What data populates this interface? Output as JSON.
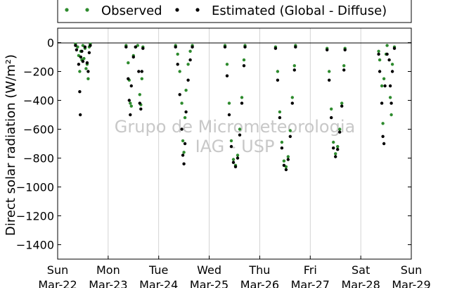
{
  "chart_data": {
    "type": "scatter",
    "title": "",
    "ylabel": "Direct solar radiation (W/m²)",
    "ylim": [
      -1500,
      100
    ],
    "yticks": [
      0,
      -200,
      -400,
      -600,
      -800,
      -1000,
      -1200,
      -1400
    ],
    "xlim": [
      "2015-03-22",
      "2015-03-29"
    ],
    "grid": "vertical-day-lines",
    "watermark": [
      "Grupo de Micrometeorologia",
      "IAG - USP"
    ],
    "legend_position": "top-outside",
    "xticks": [
      {
        "day": "Sun",
        "date": "Mar-22"
      },
      {
        "day": "Mon",
        "date": "Mar-23"
      },
      {
        "day": "Tue",
        "date": "Mar-24"
      },
      {
        "day": "Wed",
        "date": "Mar-25"
      },
      {
        "day": "Thu",
        "date": "Mar-26"
      },
      {
        "day": "Fri",
        "date": "Mar-27"
      },
      {
        "day": "Sat",
        "date": "Mar-28"
      },
      {
        "day": "Sun",
        "date": "Mar-29"
      }
    ],
    "series": [
      {
        "name": "Observed",
        "color": "#2e8b2e",
        "points": [
          [
            "2015-03-22T08:30",
            -10
          ],
          [
            "2015-03-22T09:30",
            -30
          ],
          [
            "2015-03-22T10:00",
            -90
          ],
          [
            "2015-03-22T10:30",
            -200
          ],
          [
            "2015-03-22T11:00",
            -60
          ],
          [
            "2015-03-22T11:30",
            -120
          ],
          [
            "2015-03-22T12:00",
            -20
          ],
          [
            "2015-03-22T12:30",
            -110
          ],
          [
            "2015-03-22T13:00",
            -40
          ],
          [
            "2015-03-22T13:30",
            -180
          ],
          [
            "2015-03-22T14:00",
            -150
          ],
          [
            "2015-03-22T14:30",
            -250
          ],
          [
            "2015-03-22T15:00",
            -30
          ],
          [
            "2015-03-22T15:30",
            -10
          ],
          [
            "2015-03-23T08:30",
            -20
          ],
          [
            "2015-03-23T09:30",
            -140
          ],
          [
            "2015-03-23T10:00",
            -260
          ],
          [
            "2015-03-23T10:30",
            -420
          ],
          [
            "2015-03-23T11:00",
            -440
          ],
          [
            "2015-03-23T12:00",
            -90
          ],
          [
            "2015-03-23T13:00",
            -30
          ],
          [
            "2015-03-23T14:00",
            -20
          ],
          [
            "2015-03-23T15:00",
            -360
          ],
          [
            "2015-03-23T15:30",
            -430
          ],
          [
            "2015-03-23T16:00",
            -250
          ],
          [
            "2015-03-23T16:30",
            -30
          ],
          [
            "2015-03-24T08:00",
            -20
          ],
          [
            "2015-03-24T09:00",
            -80
          ],
          [
            "2015-03-24T10:00",
            -200
          ],
          [
            "2015-03-24T11:00",
            -420
          ],
          [
            "2015-03-24T11:30",
            -680
          ],
          [
            "2015-03-24T12:00",
            -760
          ],
          [
            "2015-03-24T12:30",
            -520
          ],
          [
            "2015-03-24T13:00",
            -330
          ],
          [
            "2015-03-24T14:00",
            -150
          ],
          [
            "2015-03-24T15:00",
            -60
          ],
          [
            "2015-03-24T16:00",
            -20
          ],
          [
            "2015-03-25T07:30",
            -20
          ],
          [
            "2015-03-25T08:30",
            -150
          ],
          [
            "2015-03-25T09:30",
            -420
          ],
          [
            "2015-03-25T10:30",
            -680
          ],
          [
            "2015-03-25T11:30",
            -810
          ],
          [
            "2015-03-25T12:30",
            -850
          ],
          [
            "2015-03-25T13:30",
            -780
          ],
          [
            "2015-03-25T14:30",
            -600
          ],
          [
            "2015-03-25T15:30",
            -380
          ],
          [
            "2015-03-25T16:30",
            -120
          ],
          [
            "2015-03-25T17:00",
            -20
          ],
          [
            "2015-03-26T07:30",
            -30
          ],
          [
            "2015-03-26T08:30",
            -200
          ],
          [
            "2015-03-26T09:30",
            -480
          ],
          [
            "2015-03-26T10:30",
            -690
          ],
          [
            "2015-03-26T11:30",
            -820
          ],
          [
            "2015-03-26T12:30",
            -860
          ],
          [
            "2015-03-26T13:30",
            -790
          ],
          [
            "2015-03-26T14:30",
            -610
          ],
          [
            "2015-03-26T15:30",
            -380
          ],
          [
            "2015-03-26T16:30",
            -160
          ],
          [
            "2015-03-26T17:00",
            -20
          ],
          [
            "2015-03-27T08:00",
            -40
          ],
          [
            "2015-03-27T09:00",
            -200
          ],
          [
            "2015-03-27T10:00",
            -460
          ],
          [
            "2015-03-27T11:00",
            -690
          ],
          [
            "2015-03-27T12:00",
            -770
          ],
          [
            "2015-03-27T13:00",
            -720
          ],
          [
            "2015-03-27T14:00",
            -600
          ],
          [
            "2015-03-27T15:00",
            -420
          ],
          [
            "2015-03-27T16:00",
            -160
          ],
          [
            "2015-03-27T16:30",
            -40
          ],
          [
            "2015-03-28T08:30",
            -60
          ],
          [
            "2015-03-28T09:00",
            -120
          ],
          [
            "2015-03-28T10:00",
            -300
          ],
          [
            "2015-03-28T10:30",
            -560
          ],
          [
            "2015-03-28T11:00",
            -250
          ],
          [
            "2015-03-28T12:00",
            -80
          ],
          [
            "2015-03-28T12:30",
            -20
          ],
          [
            "2015-03-28T14:00",
            -380
          ],
          [
            "2015-03-28T14:30",
            -500
          ],
          [
            "2015-03-28T15:00",
            -150
          ],
          [
            "2015-03-28T16:00",
            -30
          ]
        ]
      },
      {
        "name": "Estimated (Global - Diffuse)",
        "color": "#000000",
        "points": [
          [
            "2015-03-22T08:30",
            -20
          ],
          [
            "2015-03-22T09:00",
            -50
          ],
          [
            "2015-03-22T10:00",
            -150
          ],
          [
            "2015-03-22T10:30",
            -340
          ],
          [
            "2015-03-22T10:45",
            -500
          ],
          [
            "2015-03-22T11:00",
            -100
          ],
          [
            "2015-03-22T11:30",
            -60
          ],
          [
            "2015-03-22T12:00",
            -130
          ],
          [
            "2015-03-22T13:00",
            -30
          ],
          [
            "2015-03-22T14:00",
            -140
          ],
          [
            "2015-03-22T14:30",
            -200
          ],
          [
            "2015-03-22T15:00",
            -70
          ],
          [
            "2015-03-22T15:30",
            -20
          ],
          [
            "2015-03-23T08:30",
            -30
          ],
          [
            "2015-03-23T09:30",
            -250
          ],
          [
            "2015-03-23T10:00",
            -400
          ],
          [
            "2015-03-23T10:30",
            -500
          ],
          [
            "2015-03-23T11:00",
            -300
          ],
          [
            "2015-03-23T12:00",
            -100
          ],
          [
            "2015-03-23T13:00",
            -30
          ],
          [
            "2015-03-23T14:30",
            -200
          ],
          [
            "2015-03-23T15:00",
            -420
          ],
          [
            "2015-03-23T15:30",
            -460
          ],
          [
            "2015-03-23T16:00",
            -200
          ],
          [
            "2015-03-23T16:30",
            -40
          ],
          [
            "2015-03-24T08:00",
            -30
          ],
          [
            "2015-03-24T09:00",
            -150
          ],
          [
            "2015-03-24T10:00",
            -360
          ],
          [
            "2015-03-24T11:00",
            -600
          ],
          [
            "2015-03-24T11:30",
            -780
          ],
          [
            "2015-03-24T12:00",
            -840
          ],
          [
            "2015-03-24T12:30",
            -700
          ],
          [
            "2015-03-24T13:00",
            -480
          ],
          [
            "2015-03-24T14:00",
            -260
          ],
          [
            "2015-03-24T15:00",
            -120
          ],
          [
            "2015-03-24T16:00",
            -30
          ],
          [
            "2015-03-25T07:30",
            -30
          ],
          [
            "2015-03-25T08:30",
            -230
          ],
          [
            "2015-03-25T09:30",
            -500
          ],
          [
            "2015-03-25T10:30",
            -720
          ],
          [
            "2015-03-25T11:30",
            -830
          ],
          [
            "2015-03-25T12:30",
            -860
          ],
          [
            "2015-03-25T13:30",
            -800
          ],
          [
            "2015-03-25T14:30",
            -640
          ],
          [
            "2015-03-25T15:30",
            -420
          ],
          [
            "2015-03-25T16:30",
            -160
          ],
          [
            "2015-03-25T17:00",
            -30
          ],
          [
            "2015-03-26T07:30",
            -40
          ],
          [
            "2015-03-26T08:30",
            -260
          ],
          [
            "2015-03-26T09:30",
            -520
          ],
          [
            "2015-03-26T10:30",
            -730
          ],
          [
            "2015-03-26T11:30",
            -850
          ],
          [
            "2015-03-26T12:30",
            -880
          ],
          [
            "2015-03-26T13:30",
            -810
          ],
          [
            "2015-03-26T14:30",
            -650
          ],
          [
            "2015-03-26T15:30",
            -420
          ],
          [
            "2015-03-26T16:30",
            -190
          ],
          [
            "2015-03-26T17:00",
            -30
          ],
          [
            "2015-03-27T08:00",
            -50
          ],
          [
            "2015-03-27T09:00",
            -260
          ],
          [
            "2015-03-27T10:00",
            -520
          ],
          [
            "2015-03-27T11:00",
            -730
          ],
          [
            "2015-03-27T12:00",
            -790
          ],
          [
            "2015-03-27T13:00",
            -740
          ],
          [
            "2015-03-27T14:00",
            -620
          ],
          [
            "2015-03-27T15:00",
            -440
          ],
          [
            "2015-03-27T16:00",
            -190
          ],
          [
            "2015-03-27T16:30",
            -50
          ],
          [
            "2015-03-28T08:30",
            -80
          ],
          [
            "2015-03-28T09:00",
            -200
          ],
          [
            "2015-03-28T10:00",
            -420
          ],
          [
            "2015-03-28T10:30",
            -650
          ],
          [
            "2015-03-28T11:00",
            -700
          ],
          [
            "2015-03-28T11:30",
            -300
          ],
          [
            "2015-03-28T12:30",
            -80
          ],
          [
            "2015-03-28T13:30",
            -120
          ],
          [
            "2015-03-28T14:00",
            -300
          ],
          [
            "2015-03-28T14:30",
            -420
          ],
          [
            "2015-03-28T15:00",
            -200
          ],
          [
            "2015-03-28T16:00",
            -40
          ]
        ]
      }
    ]
  }
}
